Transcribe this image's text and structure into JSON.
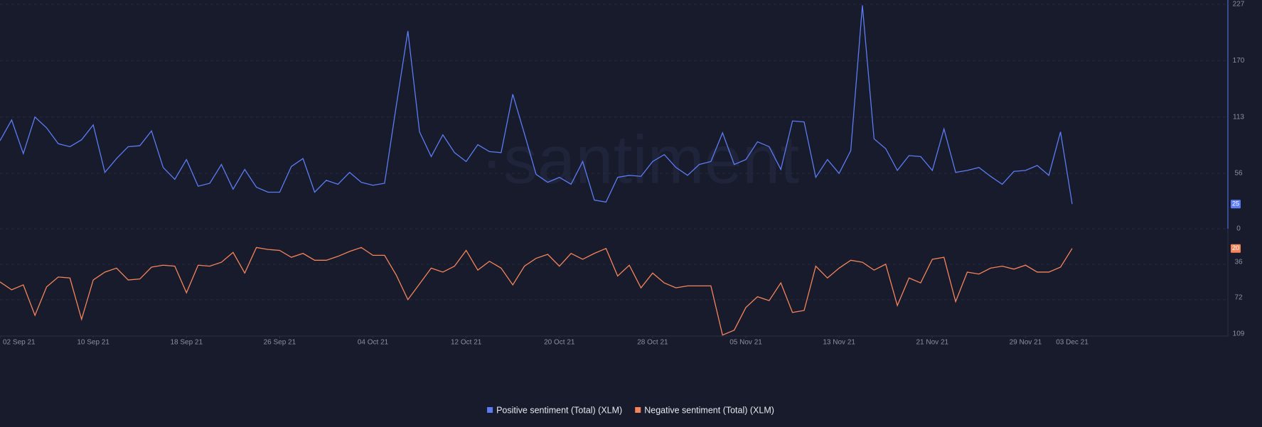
{
  "chart_data": {
    "type": "line",
    "watermark": "·santiment",
    "x": [
      "2021-09-02",
      "2021-09-03",
      "2021-09-04",
      "2021-09-05",
      "2021-09-06",
      "2021-09-07",
      "2021-09-08",
      "2021-09-09",
      "2021-09-10",
      "2021-09-11",
      "2021-09-12",
      "2021-09-13",
      "2021-09-14",
      "2021-09-15",
      "2021-09-16",
      "2021-09-17",
      "2021-09-18",
      "2021-09-19",
      "2021-09-20",
      "2021-09-21",
      "2021-09-22",
      "2021-09-23",
      "2021-09-24",
      "2021-09-25",
      "2021-09-26",
      "2021-09-27",
      "2021-09-28",
      "2021-09-29",
      "2021-09-30",
      "2021-10-01",
      "2021-10-02",
      "2021-10-03",
      "2021-10-04",
      "2021-10-05",
      "2021-10-06",
      "2021-10-07",
      "2021-10-08",
      "2021-10-09",
      "2021-10-10",
      "2021-10-11",
      "2021-10-12",
      "2021-10-13",
      "2021-10-14",
      "2021-10-15",
      "2021-10-16",
      "2021-10-17",
      "2021-10-18",
      "2021-10-19",
      "2021-10-20",
      "2021-10-21",
      "2021-10-22",
      "2021-10-23",
      "2021-10-24",
      "2021-10-25",
      "2021-10-26",
      "2021-10-27",
      "2021-10-28",
      "2021-10-29",
      "2021-10-30",
      "2021-10-31",
      "2021-11-01",
      "2021-11-02",
      "2021-11-03",
      "2021-11-04",
      "2021-11-05",
      "2021-11-06",
      "2021-11-07",
      "2021-11-08",
      "2021-11-09",
      "2021-11-10",
      "2021-11-11",
      "2021-11-12",
      "2021-11-13",
      "2021-11-14",
      "2021-11-15",
      "2021-11-16",
      "2021-11-17",
      "2021-11-18",
      "2021-11-19",
      "2021-11-20",
      "2021-11-21",
      "2021-11-22",
      "2021-11-23",
      "2021-11-24",
      "2021-11-25",
      "2021-11-26",
      "2021-11-27",
      "2021-11-28",
      "2021-11-29",
      "2021-11-30",
      "2021-12-01",
      "2021-12-02",
      "2021-12-03"
    ],
    "xlim": [
      "2021-09-02",
      "2021-12-03"
    ],
    "xticks": [
      {
        "value": "2021-09-02",
        "label": "02 Sep 21"
      },
      {
        "value": "2021-09-10",
        "label": "10 Sep 21"
      },
      {
        "value": "2021-09-18",
        "label": "18 Sep 21"
      },
      {
        "value": "2021-09-26",
        "label": "26 Sep 21"
      },
      {
        "value": "2021-10-04",
        "label": "04 Oct 21"
      },
      {
        "value": "2021-10-12",
        "label": "12 Oct 21"
      },
      {
        "value": "2021-10-20",
        "label": "20 Oct 21"
      },
      {
        "value": "2021-10-28",
        "label": "28 Oct 21"
      },
      {
        "value": "2021-11-05",
        "label": "05 Nov 21"
      },
      {
        "value": "2021-11-13",
        "label": "13 Nov 21"
      },
      {
        "value": "2021-11-21",
        "label": "21 Nov 21"
      },
      {
        "value": "2021-11-29",
        "label": "29 Nov 21"
      },
      {
        "value": "2021-12-03",
        "label": "03 Dec 21"
      }
    ],
    "ylim": [
      0,
      227
    ],
    "yticks": [
      0,
      56,
      113,
      170,
      227
    ],
    "y2lim": [
      0,
      109
    ],
    "y2ticks": [
      36,
      72,
      109
    ],
    "y2_inverted": true,
    "grid": true,
    "legend": "bottom",
    "series": [
      {
        "name": "Positive sentiment (Total) (XLM)",
        "color": "#5b7cf5",
        "values": [
          89,
          110,
          76,
          113,
          102,
          86,
          83,
          90,
          105,
          57,
          71,
          83,
          84,
          99,
          62,
          50,
          70,
          43,
          46,
          65,
          40,
          60,
          42,
          37,
          37,
          63,
          71,
          37,
          49,
          45,
          57,
          47,
          44,
          46,
          124,
          200,
          98,
          73,
          95,
          77,
          68,
          85,
          78,
          77,
          136,
          96,
          55,
          47,
          52,
          45,
          68,
          29,
          27,
          52,
          54,
          53,
          68,
          75,
          62,
          54,
          65,
          68,
          97,
          65,
          70,
          88,
          83,
          60,
          109,
          108,
          52,
          70,
          56,
          79,
          226,
          91,
          81,
          59,
          74,
          73,
          59,
          101,
          57,
          59,
          62,
          53,
          45,
          58,
          59,
          64,
          54,
          98,
          25
        ]
      },
      {
        "name": "Negative sentiment (Total) (XLM)",
        "color": "#f5845a",
        "axis": "y2",
        "values": [
          54,
          62,
          57,
          88,
          59,
          49,
          50,
          92,
          52,
          44,
          40,
          52,
          51,
          39,
          37,
          38,
          65,
          37,
          38,
          34,
          24,
          45,
          19,
          21,
          22,
          29,
          25,
          32,
          32,
          28,
          23,
          19,
          27,
          27,
          47,
          72,
          56,
          40,
          44,
          38,
          22,
          42,
          33,
          40,
          57,
          38,
          30,
          26,
          38,
          25,
          31,
          25,
          20,
          48,
          37,
          60,
          45,
          55,
          60,
          58,
          58,
          58,
          108,
          103,
          80,
          69,
          73,
          55,
          85,
          83,
          38,
          50,
          40,
          32,
          34,
          42,
          36,
          78,
          50,
          55,
          31,
          29,
          74,
          44,
          46,
          40,
          38,
          41,
          37,
          44,
          44,
          39,
          20
        ]
      }
    ]
  }
}
